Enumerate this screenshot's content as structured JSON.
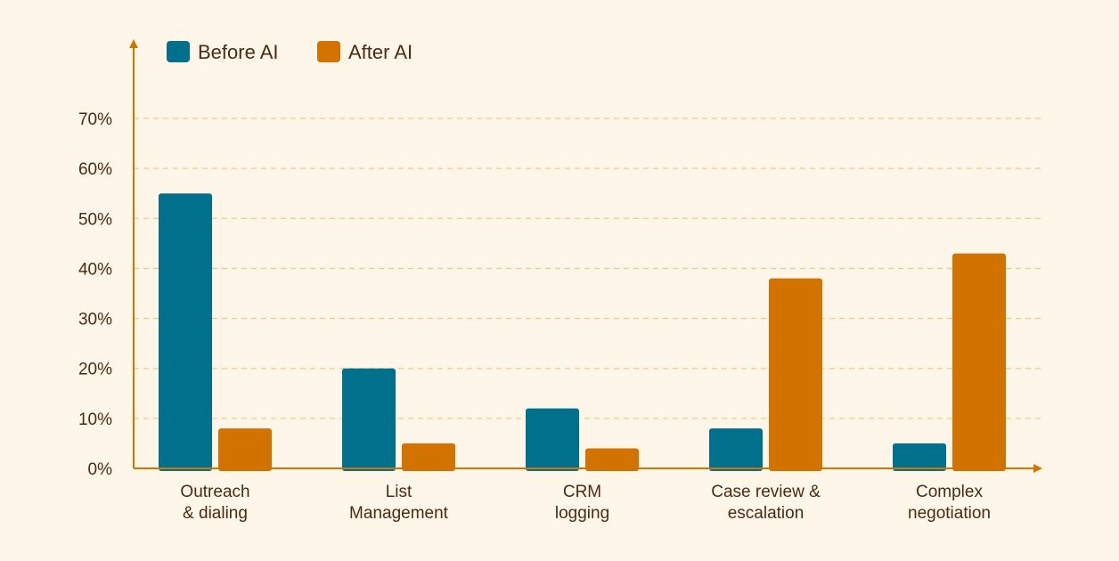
{
  "chart_data": {
    "type": "bar",
    "title": "",
    "xlabel": "",
    "ylabel": "",
    "categories": [
      [
        "Outreach",
        "& dialing"
      ],
      [
        "List",
        "Management"
      ],
      [
        "CRM",
        "logging"
      ],
      [
        "Case review &",
        "escalation"
      ],
      [
        "Complex",
        "negotiation"
      ]
    ],
    "series": [
      {
        "name": "Before AI",
        "color": "#00708C",
        "values": [
          55,
          20,
          12,
          8,
          5
        ]
      },
      {
        "name": "After AI",
        "color": "#D27300",
        "values": [
          8,
          5,
          4,
          38,
          43
        ]
      }
    ],
    "ylim": [
      0,
      70
    ],
    "yticks": [
      0,
      10,
      20,
      30,
      40,
      50,
      60,
      70
    ],
    "ytick_labels": [
      "0%",
      "10%",
      "20%",
      "30%",
      "40%",
      "50%",
      "60%",
      "70%"
    ],
    "grid": true,
    "legend_position": "top-left",
    "colors": {
      "background": "#FEF6E8",
      "axis": "#D27300",
      "grid": "#F2C98A",
      "text": "#4A2A12"
    }
  }
}
